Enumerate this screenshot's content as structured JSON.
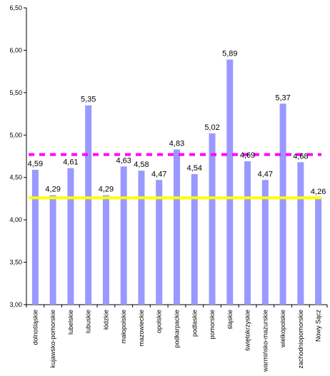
{
  "chart_data": {
    "type": "bar",
    "title": "",
    "xlabel": "",
    "ylabel": "",
    "categories": [
      "dolnośląskie",
      "kujawsko-pomorskie",
      "lubelskie",
      "lubuskie",
      "łódzkie",
      "małopolskie",
      "mazowieckie",
      "opolskie",
      "podkarpackie",
      "podlaskie",
      "pomorskie",
      "śląskie",
      "świętokrzyskie",
      "warmińsko-mazurskie",
      "wielkopolskie",
      "zachodniopomorskie",
      "Nowy Sącz"
    ],
    "values": [
      4.59,
      4.29,
      4.61,
      5.35,
      4.29,
      4.63,
      4.58,
      4.47,
      4.83,
      4.54,
      5.02,
      5.89,
      4.69,
      4.47,
      5.37,
      4.68,
      4.26
    ],
    "value_labels": [
      "4,59",
      "4,29",
      "4,61",
      "5,35",
      "4,29",
      "4,63",
      "4,58",
      "4,47",
      "4,83",
      "4,54",
      "5,02",
      "5,89",
      "4,69",
      "4,47",
      "5,37",
      "4,68",
      "4,26"
    ],
    "ylim": [
      3.0,
      6.5
    ],
    "yticks": [
      3.0,
      3.5,
      4.0,
      4.5,
      5.0,
      5.5,
      6.0,
      6.5
    ],
    "ytick_labels": [
      "3,00",
      "3,50",
      "4,00",
      "4,50",
      "5,00",
      "5,50",
      "6,00",
      "6,50"
    ],
    "reference_lines": [
      {
        "value": 4.77,
        "color": "#ff00ff",
        "style": "dashed"
      },
      {
        "value": 4.26,
        "color": "#ffff00",
        "style": "solid"
      }
    ],
    "bar_color": "#9999ff",
    "grid": false,
    "legend": "none"
  }
}
